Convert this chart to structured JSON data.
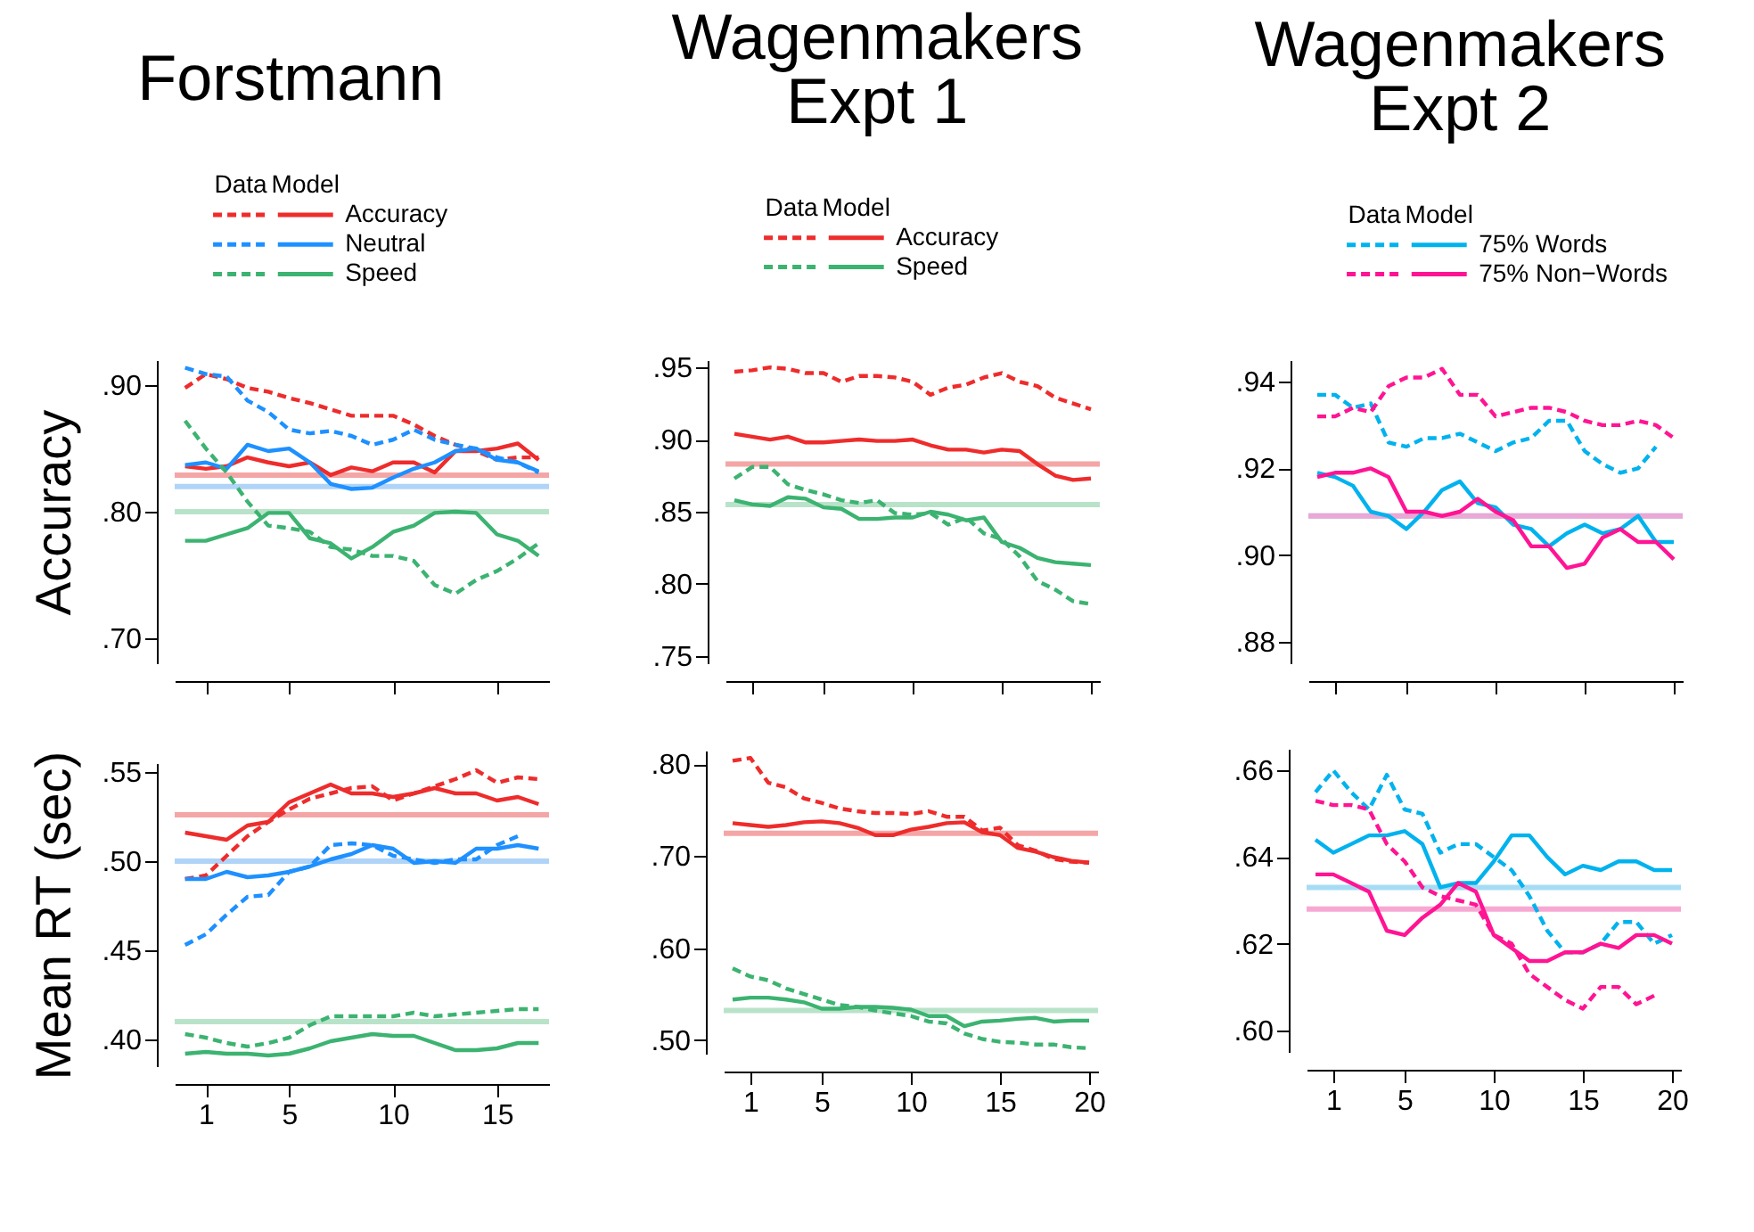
{
  "chart_data": [
    {
      "type": "line",
      "title": "Forstmann",
      "ylabel": "Accuracy",
      "legend": "top",
      "legend_title": "Data Model",
      "tick_labels": "y",
      "x": [
        0,
        1,
        2,
        3,
        4,
        5,
        6,
        7,
        8,
        9,
        10,
        11,
        12,
        13,
        14,
        15,
        16,
        17
      ],
      "xlim": [
        -0.5,
        17.5
      ],
      "xticks": [
        1,
        5,
        10,
        15
      ],
      "ylim": [
        0.68,
        0.92
      ],
      "yticks": [
        {
          "value": 0.7,
          "label": ".70"
        },
        {
          "value": 0.8,
          "label": ".80"
        },
        {
          "value": 0.9,
          "label": ".90"
        }
      ],
      "ref_lines": [
        {
          "axis": "y",
          "value": 0.829,
          "color": "#f4a6a6"
        },
        {
          "axis": "y",
          "value": 0.82,
          "color": "#b0d4f7"
        },
        {
          "axis": "y",
          "value": 0.8,
          "color": "#b9e3c9"
        }
      ],
      "series": [
        {
          "name": "Accuracy",
          "color": "#ee2c2c",
          "line_style": "dashed",
          "values": [
            0.898,
            0.909,
            0.905,
            0.898,
            0.895,
            0.89,
            0.886,
            0.881,
            0.876,
            0.876,
            0.876,
            0.869,
            0.86,
            0.853,
            0.848,
            0.841,
            0.843,
            0.843
          ]
        },
        {
          "color": "#ee2c2c",
          "line_style": "solid",
          "values": [
            0.836,
            0.834,
            0.836,
            0.843,
            0.839,
            0.836,
            0.839,
            0.829,
            0.835,
            0.832,
            0.839,
            0.839,
            0.831,
            0.848,
            0.848,
            0.85,
            0.854,
            0.841
          ]
        },
        {
          "name": "Neutral",
          "color": "#1e90ff",
          "line_style": "dashed",
          "values": [
            0.914,
            0.909,
            0.907,
            0.888,
            0.879,
            0.865,
            0.862,
            0.864,
            0.86,
            0.853,
            0.857,
            0.865,
            0.857,
            0.853,
            0.85,
            0.843,
            0.839,
            0.831
          ]
        },
        {
          "color": "#1e90ff",
          "line_style": "solid",
          "values": [
            0.837,
            0.839,
            0.834,
            0.853,
            0.848,
            0.85,
            0.839,
            0.822,
            0.818,
            0.819,
            0.827,
            0.834,
            0.839,
            0.848,
            0.85,
            0.841,
            0.839,
            0.832
          ]
        },
        {
          "name": "Speed",
          "color": "#3cb371",
          "line_style": "dashed",
          "values": [
            0.872,
            0.85,
            0.831,
            0.808,
            0.789,
            0.787,
            0.784,
            0.772,
            0.77,
            0.765,
            0.765,
            0.761,
            0.742,
            0.735,
            0.746,
            0.753,
            0.763,
            0.775
          ]
        },
        {
          "color": "#3cb371",
          "line_style": "solid",
          "values": [
            0.777,
            0.777,
            0.782,
            0.787,
            0.799,
            0.799,
            0.779,
            0.775,
            0.763,
            0.772,
            0.784,
            0.789,
            0.799,
            0.8,
            0.799,
            0.782,
            0.777,
            0.765
          ]
        }
      ]
    },
    {
      "type": "line",
      "title": "Wagenmakers\nExpt 1",
      "legend": "top",
      "legend_title": "Data Model",
      "tick_labels": "y",
      "x": [
        0,
        1,
        2,
        3,
        4,
        5,
        6,
        7,
        8,
        9,
        10,
        11,
        12,
        13,
        14,
        15,
        16,
        17,
        18,
        19,
        20
      ],
      "xlim": [
        -0.5,
        20.5
      ],
      "xticks": [
        1,
        5,
        10,
        15,
        20
      ],
      "ylim": [
        0.745,
        0.955
      ],
      "yticks": [
        {
          "value": 0.75,
          "label": ".75"
        },
        {
          "value": 0.8,
          "label": ".80"
        },
        {
          "value": 0.85,
          "label": ".85"
        },
        {
          "value": 0.9,
          "label": ".90"
        },
        {
          "value": 0.95,
          "label": ".95"
        }
      ],
      "ref_lines": [
        {
          "axis": "y",
          "value": 0.883,
          "color": "#f4a6a6"
        },
        {
          "axis": "y",
          "value": 0.855,
          "color": "#b9e3c9"
        }
      ],
      "series": [
        {
          "name": "Accuracy",
          "color": "#ee2c2c",
          "line_style": "dashed",
          "values": [
            0.947,
            0.948,
            0.95,
            0.949,
            0.946,
            0.946,
            0.94,
            0.944,
            0.944,
            0.943,
            0.94,
            0.931,
            0.936,
            0.938,
            0.943,
            0.946,
            0.94,
            0.937,
            0.929,
            0.925,
            0.921
          ]
        },
        {
          "color": "#ee2c2c",
          "line_style": "solid",
          "values": [
            0.904,
            0.902,
            0.9,
            0.902,
            0.898,
            0.898,
            0.899,
            0.9,
            0.899,
            0.899,
            0.9,
            0.896,
            0.893,
            0.893,
            0.891,
            0.893,
            0.892,
            0.883,
            0.875,
            0.872,
            0.873
          ]
        },
        {
          "name": "Speed",
          "color": "#3cb371",
          "line_style": "dashed",
          "values": [
            0.873,
            0.881,
            0.881,
            0.869,
            0.865,
            0.862,
            0.858,
            0.856,
            0.858,
            0.849,
            0.848,
            0.849,
            0.841,
            0.846,
            0.835,
            0.831,
            0.819,
            0.802,
            0.796,
            0.788,
            0.786
          ]
        },
        {
          "color": "#3cb371",
          "line_style": "solid",
          "values": [
            0.858,
            0.855,
            0.854,
            0.86,
            0.859,
            0.853,
            0.852,
            0.845,
            0.845,
            0.846,
            0.846,
            0.85,
            0.848,
            0.844,
            0.846,
            0.829,
            0.825,
            0.818,
            0.815,
            0.814,
            0.813
          ]
        }
      ]
    },
    {
      "type": "line",
      "title": "Wagenmakers\nExpt 2",
      "legend": "top",
      "legend_title": "Data Model",
      "tick_labels": "y",
      "x": [
        0,
        1,
        2,
        3,
        4,
        5,
        6,
        7,
        8,
        9,
        10,
        11,
        12,
        13,
        14,
        15,
        16,
        17,
        18,
        19,
        20
      ],
      "xlim": [
        -0.5,
        20.5
      ],
      "xticks": [
        1,
        5,
        10,
        15,
        20
      ],
      "ylim": [
        0.875,
        0.945
      ],
      "yticks": [
        {
          "value": 0.88,
          "label": ".88"
        },
        {
          "value": 0.9,
          "label": ".90"
        },
        {
          "value": 0.92,
          "label": ".92"
        },
        {
          "value": 0.94,
          "label": ".94"
        }
      ],
      "ref_lines": [
        {
          "axis": "y",
          "value": 0.909,
          "color": "#a6dcf3"
        },
        {
          "axis": "y",
          "value": 0.909,
          "color": "#e9a8d6"
        }
      ],
      "series": [
        {
          "name": "75% Words",
          "color": "#00b2ee",
          "line_style": "dashed",
          "values": [
            0.937,
            0.937,
            0.934,
            0.935,
            0.926,
            0.925,
            0.927,
            0.927,
            0.928,
            0.926,
            0.924,
            0.926,
            0.927,
            0.931,
            0.931,
            0.924,
            0.921,
            0.919,
            0.92,
            0.925,
            null
          ]
        },
        {
          "color": "#00b2ee",
          "line_style": "solid",
          "values": [
            0.919,
            0.918,
            0.916,
            0.91,
            0.909,
            0.906,
            0.91,
            0.915,
            0.917,
            0.912,
            0.911,
            0.907,
            0.906,
            0.902,
            0.905,
            0.907,
            0.905,
            0.906,
            0.909,
            0.903,
            0.903
          ]
        },
        {
          "name": "75% Non−Words",
          "color": "#ff1493",
          "line_style": "dashed",
          "values": [
            0.932,
            0.932,
            0.934,
            0.933,
            0.939,
            0.941,
            0.941,
            0.943,
            0.937,
            0.937,
            0.932,
            0.933,
            0.934,
            0.934,
            0.933,
            0.931,
            0.93,
            0.93,
            0.931,
            0.93,
            0.927
          ]
        },
        {
          "color": "#ff1493",
          "line_style": "solid",
          "values": [
            0.918,
            0.919,
            0.919,
            0.92,
            0.918,
            0.91,
            0.91,
            0.909,
            0.91,
            0.913,
            0.91,
            0.908,
            0.902,
            0.902,
            0.897,
            0.898,
            0.904,
            0.906,
            0.903,
            0.903,
            0.899
          ]
        }
      ]
    },
    {
      "type": "line",
      "ylabel": "Mean RT (sec)",
      "x": [
        0,
        1,
        2,
        3,
        4,
        5,
        6,
        7,
        8,
        9,
        10,
        11,
        12,
        13,
        14,
        15,
        16,
        17
      ],
      "xlim": [
        -0.5,
        17.5
      ],
      "xticks": [
        1,
        5,
        10,
        15
      ],
      "ylim": [
        0.385,
        0.555
      ],
      "yticks": [
        {
          "value": 0.4,
          "label": ".40"
        },
        {
          "value": 0.45,
          "label": ".45"
        },
        {
          "value": 0.5,
          "label": ".50"
        },
        {
          "value": 0.55,
          "label": ".55"
        }
      ],
      "ref_lines": [
        {
          "axis": "y",
          "value": 0.526,
          "color": "#f4a6a6"
        },
        {
          "axis": "y",
          "value": 0.5,
          "color": "#b0d4f7"
        },
        {
          "axis": "y",
          "value": 0.41,
          "color": "#b9e3c9"
        }
      ],
      "series": [
        {
          "color": "#ee2c2c",
          "line_style": "dashed",
          "values": [
            0.49,
            0.492,
            0.503,
            0.514,
            0.522,
            0.529,
            0.535,
            0.538,
            0.541,
            0.542,
            0.534,
            0.538,
            0.542,
            0.546,
            0.551,
            0.544,
            0.547,
            0.546
          ]
        },
        {
          "color": "#ee2c2c",
          "line_style": "solid",
          "values": [
            0.516,
            0.514,
            0.512,
            0.52,
            0.522,
            0.533,
            0.538,
            0.543,
            0.538,
            0.538,
            0.536,
            0.538,
            0.541,
            0.538,
            0.538,
            0.534,
            0.536,
            0.532
          ]
        },
        {
          "color": "#1e90ff",
          "line_style": "dashed",
          "values": [
            0.453,
            0.459,
            0.47,
            0.48,
            0.481,
            0.494,
            0.497,
            0.509,
            0.51,
            0.509,
            0.503,
            0.501,
            0.499,
            0.501,
            0.501,
            0.509,
            0.514,
            null
          ]
        },
        {
          "color": "#1e90ff",
          "line_style": "solid",
          "values": [
            0.49,
            0.49,
            0.494,
            0.491,
            0.492,
            0.494,
            0.497,
            0.501,
            0.504,
            0.509,
            0.507,
            0.499,
            0.5,
            0.499,
            0.507,
            0.507,
            0.509,
            0.507
          ]
        },
        {
          "color": "#3cb371",
          "line_style": "dashed",
          "values": [
            0.403,
            0.401,
            0.398,
            0.396,
            0.398,
            0.401,
            0.408,
            0.413,
            0.413,
            0.413,
            0.413,
            0.415,
            0.413,
            0.414,
            0.415,
            0.416,
            0.417,
            0.417
          ]
        },
        {
          "color": "#3cb371",
          "line_style": "solid",
          "values": [
            0.392,
            0.393,
            0.392,
            0.392,
            0.391,
            0.392,
            0.395,
            0.399,
            0.401,
            0.403,
            0.402,
            0.402,
            0.398,
            0.394,
            0.394,
            0.395,
            0.398,
            0.398
          ]
        }
      ]
    },
    {
      "type": "line",
      "x": [
        0,
        1,
        2,
        3,
        4,
        5,
        6,
        7,
        8,
        9,
        10,
        11,
        12,
        13,
        14,
        15,
        16,
        17,
        18,
        19,
        20
      ],
      "xlim": [
        -0.5,
        20.5
      ],
      "xticks": [
        1,
        5,
        10,
        15,
        20
      ],
      "ylim": [
        0.485,
        0.815
      ],
      "yticks": [
        {
          "value": 0.5,
          "label": ".50"
        },
        {
          "value": 0.6,
          "label": ".60"
        },
        {
          "value": 0.7,
          "label": ".70"
        },
        {
          "value": 0.8,
          "label": ".80"
        }
      ],
      "ref_lines": [
        {
          "axis": "y",
          "value": 0.725,
          "color": "#f4a6a6"
        },
        {
          "axis": "y",
          "value": 0.532,
          "color": "#b9e3c9"
        }
      ],
      "series": [
        {
          "color": "#ee2c2c",
          "line_style": "dashed",
          "values": [
            0.804,
            0.807,
            0.78,
            0.775,
            0.763,
            0.758,
            0.752,
            0.749,
            0.747,
            0.747,
            0.746,
            0.749,
            0.743,
            0.743,
            0.728,
            0.731,
            0.712,
            0.706,
            0.697,
            0.694,
            0.693
          ]
        },
        {
          "color": "#ee2c2c",
          "line_style": "solid",
          "values": [
            0.736,
            0.734,
            0.732,
            0.734,
            0.737,
            0.738,
            0.736,
            0.731,
            0.723,
            0.723,
            0.729,
            0.732,
            0.736,
            0.737,
            0.726,
            0.723,
            0.709,
            0.705,
            0.699,
            0.695,
            0.693
          ]
        },
        {
          "color": "#3cb371",
          "line_style": "dashed",
          "values": [
            0.578,
            0.569,
            0.565,
            0.556,
            0.55,
            0.544,
            0.538,
            0.536,
            0.532,
            0.529,
            0.526,
            0.52,
            0.518,
            0.507,
            0.501,
            0.498,
            0.497,
            0.495,
            0.495,
            0.492,
            0.491
          ]
        },
        {
          "color": "#3cb371",
          "line_style": "solid",
          "values": [
            0.544,
            0.546,
            0.546,
            0.544,
            0.541,
            0.534,
            0.534,
            0.536,
            0.536,
            0.535,
            0.533,
            0.526,
            0.526,
            0.515,
            0.52,
            0.521,
            0.523,
            0.524,
            0.52,
            0.521,
            0.521
          ]
        }
      ]
    },
    {
      "type": "line",
      "x": [
        0,
        1,
        2,
        3,
        4,
        5,
        6,
        7,
        8,
        9,
        10,
        11,
        12,
        13,
        14,
        15,
        16,
        17,
        18,
        19,
        20
      ],
      "xlim": [
        -0.5,
        20.5
      ],
      "xticks": [
        1,
        5,
        10,
        15,
        20
      ],
      "ylim": [
        0.595,
        0.665
      ],
      "yticks": [
        {
          "value": 0.6,
          "label": ".60"
        },
        {
          "value": 0.62,
          "label": ".62"
        },
        {
          "value": 0.64,
          "label": ".64"
        },
        {
          "value": 0.66,
          "label": ".66"
        }
      ],
      "ref_lines": [
        {
          "axis": "y",
          "value": 0.633,
          "color": "#a6dcf3"
        },
        {
          "axis": "y",
          "value": 0.628,
          "color": "#f7a8d2"
        }
      ],
      "series": [
        {
          "color": "#00b2ee",
          "line_style": "dashed",
          "values": [
            0.655,
            0.66,
            0.655,
            0.651,
            0.659,
            0.651,
            0.65,
            0.641,
            0.643,
            0.643,
            0.64,
            0.637,
            0.631,
            0.623,
            0.618,
            0.618,
            0.62,
            0.625,
            0.625,
            0.62,
            0.622
          ]
        },
        {
          "color": "#00b2ee",
          "line_style": "solid",
          "values": [
            0.644,
            0.641,
            0.643,
            0.645,
            0.645,
            0.646,
            0.643,
            0.633,
            0.634,
            0.634,
            0.639,
            0.645,
            0.645,
            0.64,
            0.636,
            0.638,
            0.637,
            0.639,
            0.639,
            0.637,
            0.637
          ]
        },
        {
          "color": "#ff1493",
          "line_style": "dashed",
          "values": [
            0.653,
            0.652,
            0.652,
            0.651,
            0.643,
            0.639,
            0.633,
            0.631,
            0.63,
            0.629,
            0.622,
            0.62,
            0.613,
            0.61,
            0.607,
            0.605,
            0.61,
            0.61,
            0.606,
            0.608,
            null
          ]
        },
        {
          "color": "#ff1493",
          "line_style": "solid",
          "values": [
            0.636,
            0.636,
            0.634,
            0.632,
            0.623,
            0.622,
            0.626,
            0.629,
            0.634,
            0.632,
            0.622,
            0.619,
            0.616,
            0.616,
            0.618,
            0.618,
            0.62,
            0.619,
            0.622,
            0.622,
            0.62
          ]
        }
      ]
    }
  ]
}
